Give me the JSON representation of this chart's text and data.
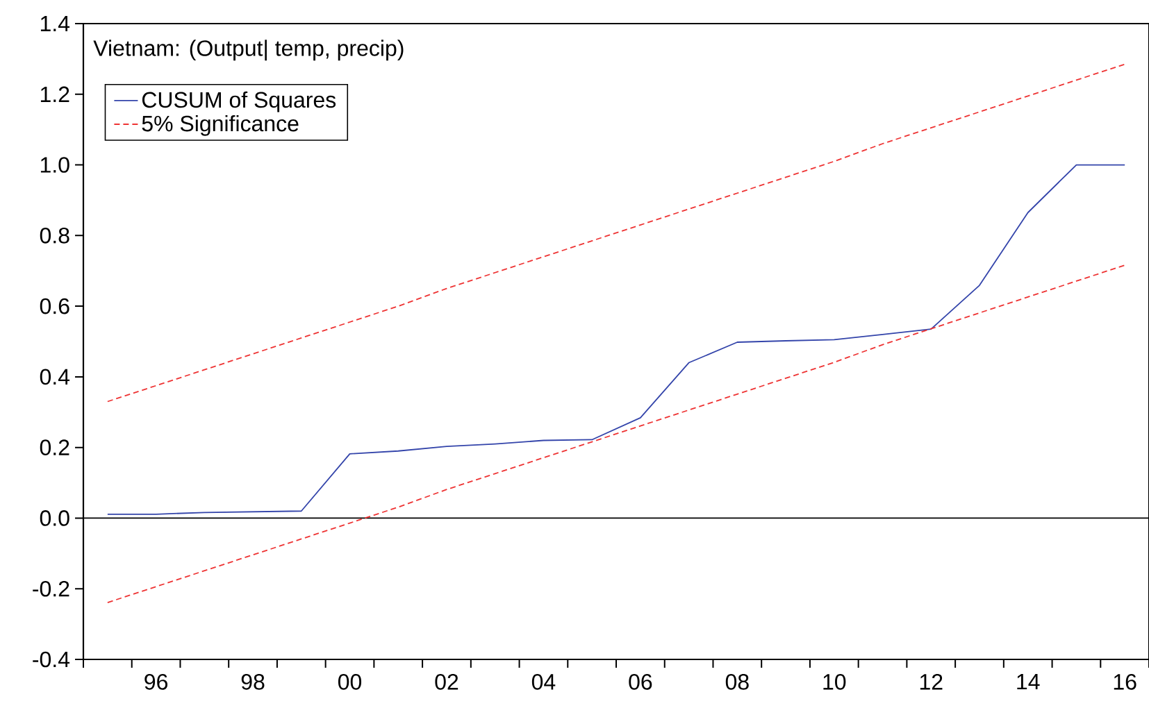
{
  "chart_data": {
    "type": "line",
    "title": "Vietnam: (Output| temp, precip)",
    "x": [
      1995,
      1996,
      1997,
      1998,
      1999,
      2000,
      2001,
      2002,
      2003,
      2004,
      2005,
      2006,
      2007,
      2008,
      2009,
      2010,
      2011,
      2012,
      2013,
      2014,
      2015,
      2016
    ],
    "series": [
      {
        "name": "CUSUM of Squares",
        "color": "#3344aa",
        "values": [
          0.011,
          0.011,
          0.016,
          0.018,
          0.02,
          0.182,
          0.19,
          0.203,
          0.21,
          0.22,
          0.222,
          0.284,
          0.44,
          0.498,
          0.502,
          0.505,
          0.52,
          0.535,
          0.659,
          0.865,
          1.0,
          1.0
        ]
      },
      {
        "name": "5% Significance",
        "color": "#ee3333",
        "line_style": "dashed",
        "values": [
          0.33,
          0.375,
          0.42,
          0.465,
          0.51,
          0.555,
          0.6,
          0.65,
          0.695,
          0.74,
          0.785,
          0.83,
          0.875,
          0.92,
          0.965,
          1.01,
          1.06,
          1.105,
          1.15,
          1.195,
          1.24,
          1.285
        ]
      },
      {
        "color": "#ee3333",
        "line_style": "dashed",
        "values": [
          -0.239,
          -0.194,
          -0.149,
          -0.104,
          -0.059,
          -0.014,
          0.031,
          0.081,
          0.126,
          0.171,
          0.216,
          0.261,
          0.306,
          0.351,
          0.396,
          0.441,
          0.491,
          0.536,
          0.581,
          0.626,
          0.671,
          0.716
        ]
      }
    ],
    "xlim": [
      1994.5,
      2016.5
    ],
    "xticks": [
      {
        "value": 1994.5,
        "label": null
      },
      {
        "value": 1995.5,
        "label": null
      },
      {
        "value": 1996,
        "label": "96"
      },
      {
        "value": 1996.5,
        "label": null
      },
      {
        "value": 1997.5,
        "label": null
      },
      {
        "value": 1998,
        "label": "98"
      },
      {
        "value": 1998.5,
        "label": null
      },
      {
        "value": 1999.5,
        "label": null
      },
      {
        "value": 2000,
        "label": "00"
      },
      {
        "value": 2000.5,
        "label": null
      },
      {
        "value": 2001.5,
        "label": null
      },
      {
        "value": 2002,
        "label": "02"
      },
      {
        "value": 2002.5,
        "label": null
      },
      {
        "value": 2003.5,
        "label": null
      },
      {
        "value": 2004,
        "label": "04"
      },
      {
        "value": 2004.5,
        "label": null
      },
      {
        "value": 2005.5,
        "label": null
      },
      {
        "value": 2006,
        "label": "06"
      },
      {
        "value": 2006.5,
        "label": null
      },
      {
        "value": 2007.5,
        "label": null
      },
      {
        "value": 2008,
        "label": "08"
      },
      {
        "value": 2008.5,
        "label": null
      },
      {
        "value": 2009.5,
        "label": null
      },
      {
        "value": 2010,
        "label": "10"
      },
      {
        "value": 2010.5,
        "label": null
      },
      {
        "value": 2011.5,
        "label": null
      },
      {
        "value": 2012,
        "label": "12"
      },
      {
        "value": 2012.5,
        "label": null
      },
      {
        "value": 2013.5,
        "label": null
      },
      {
        "value": 2014,
        "label": "14"
      },
      {
        "value": 2014.5,
        "label": null
      },
      {
        "value": 2015.5,
        "label": null
      },
      {
        "value": 2016,
        "label": "16"
      },
      {
        "value": 2016.5,
        "label": null
      }
    ],
    "ylim": [
      -0.4,
      1.4
    ],
    "yticks": [
      -0.4,
      -0.2,
      {
        "value": 0,
        "label": "0.0"
      },
      0.2,
      0.4,
      0.6,
      0.8,
      {
        "value": 1,
        "label": "1.0"
      },
      1.2,
      1.4
    ],
    "ref_lines": [
      {
        "axis": "y",
        "value": 0,
        "color": "#000000",
        "line_style": "solid"
      }
    ],
    "legend": "top left",
    "grid": false,
    "marker": "none",
    "line_style": "solid"
  }
}
